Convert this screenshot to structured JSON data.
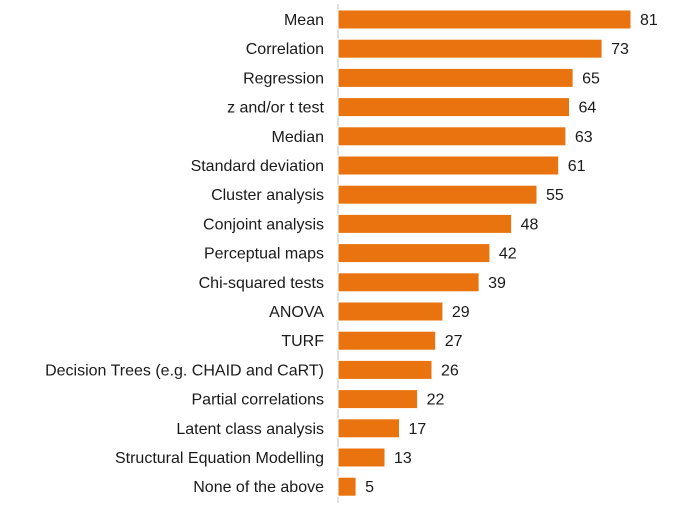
{
  "chart_data": {
    "type": "bar",
    "orientation": "horizontal",
    "title": "",
    "xlabel": "",
    "ylabel": "",
    "xlim": [
      0,
      81
    ],
    "grid": false,
    "bar_color": "#E8730F",
    "categories": [
      "Mean",
      "Correlation",
      "Regression",
      "z and/or t test",
      "Median",
      "Standard deviation",
      "Cluster analysis",
      "Conjoint analysis",
      "Perceptual maps",
      "Chi-squared tests",
      "ANOVA",
      "TURF",
      "Decision Trees (e.g. CHAID and CaRT)",
      "Partial correlations",
      "Latent class analysis",
      "Structural Equation Modelling",
      "None of the above"
    ],
    "values": [
      81,
      73,
      65,
      64,
      63,
      61,
      55,
      48,
      42,
      39,
      29,
      27,
      26,
      22,
      17,
      13,
      5
    ]
  }
}
